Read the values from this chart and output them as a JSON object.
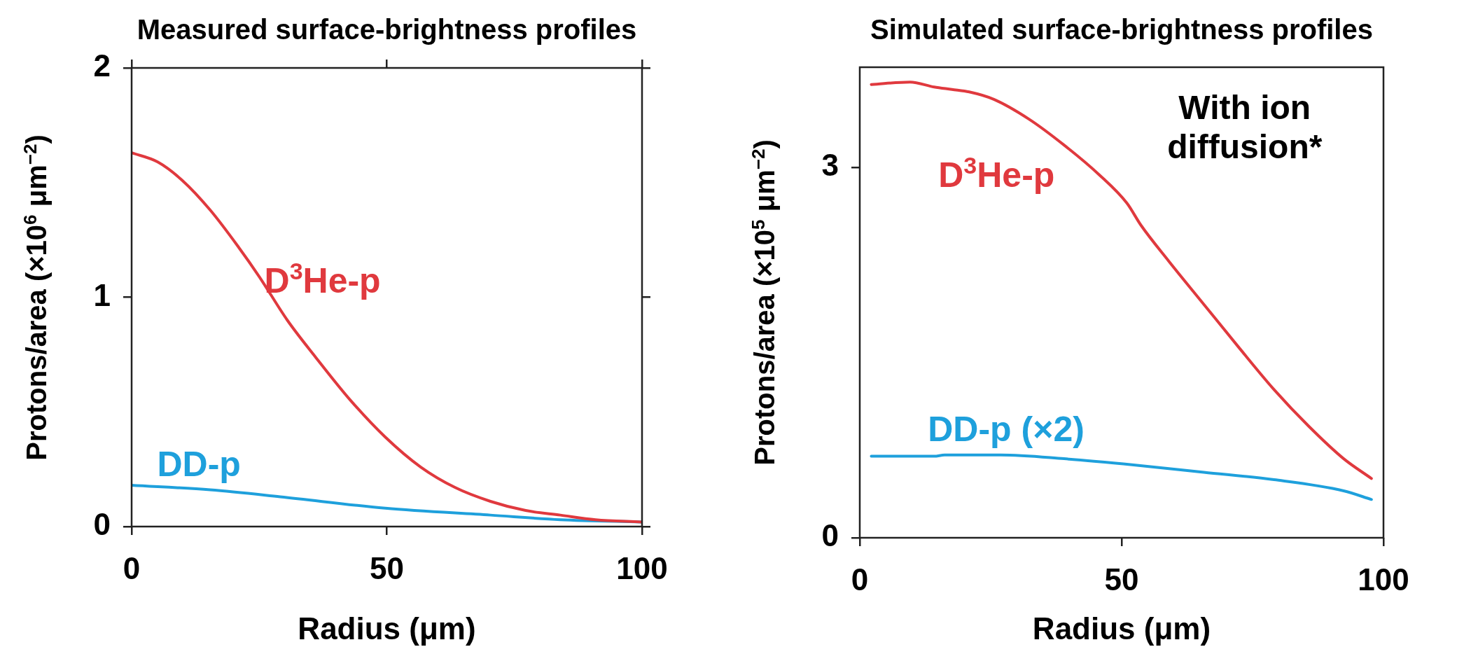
{
  "chart_data": [
    {
      "type": "line",
      "title": "Measured surface-brightness profiles",
      "xlabel": "Radius (μm)",
      "ylabel": "Protons/area (×10$^{6}$ μm$^{−2}$)",
      "xlim": [
        0,
        100
      ],
      "xticks": [
        0,
        50,
        100
      ],
      "ylim": [
        0,
        2
      ],
      "yticks": [
        0,
        1,
        2
      ],
      "grid": false,
      "legend": false,
      "marker": "none",
      "line_style": "solid",
      "series": [
        {
          "name": "D$^{3}$He-p",
          "color": "#e0393e",
          "x": [
            0,
            5.1,
            9.9,
            15.4,
            20.9,
            25,
            30.5,
            36,
            42.9,
            49.7,
            56.6,
            63.4,
            70.3,
            77.2,
            84,
            90.9,
            99.8
          ],
          "values": [
            1.63,
            1.59,
            1.51,
            1.38,
            1.22,
            1.09,
            0.9,
            0.74,
            0.55,
            0.39,
            0.26,
            0.17,
            0.11,
            0.07,
            0.05,
            0.03,
            0.02
          ]
        },
        {
          "name": "DD-p",
          "color": "#1ea0dc",
          "x": [
            0,
            15.4,
            29.1,
            49.7,
            70.3,
            84,
            99.8
          ],
          "values": [
            0.18,
            0.16,
            0.13,
            0.08,
            0.05,
            0.03,
            0.02
          ]
        }
      ]
    },
    {
      "type": "line",
      "title": "Simulated surface-brightness profiles",
      "xlabel": "Radius (μm)",
      "ylabel": "Protons/area (×10$^{5}$ μm$^{−2}$)",
      "xlim": [
        0,
        100
      ],
      "xticks": [
        0,
        50,
        100
      ],
      "ylim": [
        0,
        3.81
      ],
      "yticks": [
        0,
        3
      ],
      "grid": false,
      "legend": false,
      "marker": "none",
      "line_style": "solid",
      "annotations": [
        "With ion diffusion*"
      ],
      "series": [
        {
          "name": "D$^{3}$He-p",
          "color": "#e0393e",
          "x": [
            2.2,
            9.6,
            14.2,
            17.6,
            20.9,
            25.6,
            32.3,
            39,
            45.7,
            51,
            53.7,
            59,
            65.7,
            72.4,
            79.1,
            85.8,
            92.4,
            97.7
          ],
          "values": [
            3.67,
            3.69,
            3.65,
            3.63,
            3.61,
            3.55,
            3.39,
            3.18,
            2.94,
            2.71,
            2.53,
            2.24,
            1.89,
            1.54,
            1.2,
            0.9,
            0.64,
            0.48
          ]
        },
        {
          "name": "DD-p (×2)",
          "color": "#1ea0dc",
          "x": [
            2.2,
            14.2,
            16.2,
            26.9,
            39,
            52.3,
            65.7,
            79.1,
            92.4,
            97.7
          ],
          "values": [
            0.66,
            0.66,
            0.67,
            0.67,
            0.64,
            0.59,
            0.53,
            0.47,
            0.38,
            0.31
          ]
        }
      ]
    }
  ]
}
